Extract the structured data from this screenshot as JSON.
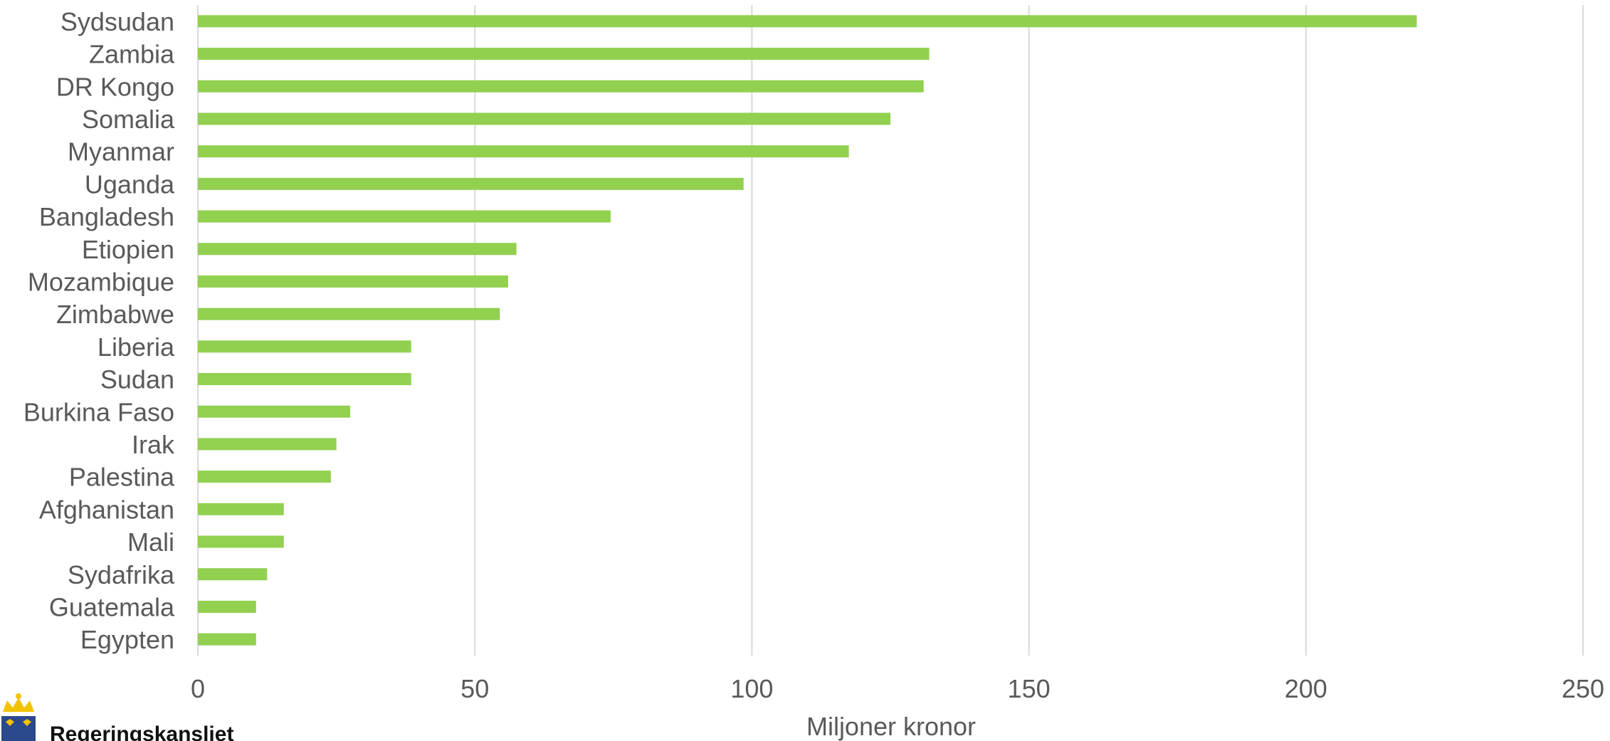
{
  "chart_data": {
    "type": "bar",
    "orientation": "horizontal",
    "categories": [
      "Sydsudan",
      "Zambia",
      "DR Kongo",
      "Somalia",
      "Myanmar",
      "Uganda",
      "Bangladesh",
      "Etiopien",
      "Mozambique",
      "Zimbabwe",
      "Liberia",
      "Sudan",
      "Burkina Faso",
      "Irak",
      "Palestina",
      "Afghanistan",
      "Mali",
      "Sydafrika",
      "Guatemala",
      "Egypten"
    ],
    "values": [
      220,
      132,
      131,
      125,
      117.5,
      98.5,
      74.5,
      57.5,
      56,
      54.5,
      38.5,
      38.5,
      27.5,
      25,
      24,
      15.5,
      15.5,
      12.5,
      10.5,
      10.5
    ],
    "xlabel": "Miljoner kronor",
    "xlim": [
      0,
      250
    ],
    "xticks": [
      0,
      50,
      100,
      150,
      200,
      250
    ],
    "grid": "vertical",
    "legend": "none"
  },
  "colors": {
    "bar": "#92d050",
    "grid": "#d9d9d9",
    "text": "#595959"
  },
  "logo": {
    "text": "Regeringskansliet",
    "icon": "crown-icon"
  }
}
